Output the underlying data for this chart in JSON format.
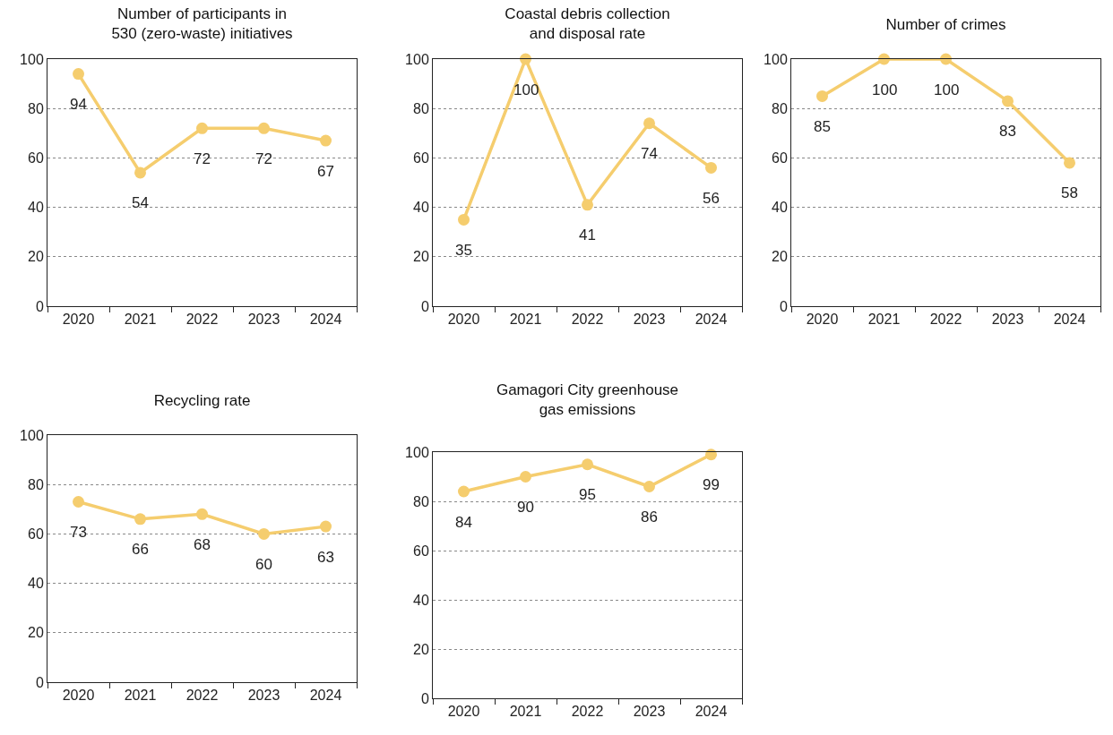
{
  "chart_data": [
    {
      "type": "line",
      "title": "Number of participants in 530 (zero-waste) initiatives",
      "categories": [
        "2020",
        "2021",
        "2022",
        "2023",
        "2024"
      ],
      "series": [
        {
          "color": "#f5cd6e",
          "values": [
            94,
            54,
            72,
            72,
            67
          ]
        }
      ],
      "ylim": [
        0,
        100
      ],
      "yticks": [
        0,
        20,
        40,
        60,
        80,
        100
      ],
      "grid": "y",
      "marker": "circle",
      "line_style": "solid",
      "data_labels": true
    },
    {
      "type": "line",
      "title": "Coastal debris collection and disposal rate",
      "categories": [
        "2020",
        "2021",
        "2022",
        "2023",
        "2024"
      ],
      "series": [
        {
          "color": "#f5cd6e",
          "values": [
            35,
            100,
            41,
            74,
            56
          ]
        }
      ],
      "ylim": [
        0,
        100
      ],
      "yticks": [
        0,
        20,
        40,
        60,
        80,
        100
      ],
      "grid": "y",
      "marker": "circle",
      "line_style": "solid",
      "data_labels": true
    },
    {
      "type": "line",
      "title": "Number of crimes",
      "categories": [
        "2020",
        "2021",
        "2022",
        "2023",
        "2024"
      ],
      "series": [
        {
          "color": "#f5cd6e",
          "values": [
            85,
            100,
            100,
            83,
            58
          ]
        }
      ],
      "ylim": [
        0,
        100
      ],
      "yticks": [
        0,
        20,
        40,
        60,
        80,
        100
      ],
      "grid": "y",
      "marker": "circle",
      "line_style": "solid",
      "data_labels": true
    },
    {
      "type": "line",
      "title": "Recycling rate",
      "categories": [
        "2020",
        "2021",
        "2022",
        "2023",
        "2024"
      ],
      "series": [
        {
          "color": "#f5cd6e",
          "values": [
            73,
            66,
            68,
            60,
            63
          ]
        }
      ],
      "ylim": [
        0,
        100
      ],
      "yticks": [
        0,
        20,
        40,
        60,
        80,
        100
      ],
      "grid": "y",
      "marker": "circle",
      "line_style": "solid",
      "data_labels": true
    },
    {
      "type": "line",
      "title": "Gamagori City greenhouse gas emissions",
      "categories": [
        "2020",
        "2021",
        "2022",
        "2023",
        "2024"
      ],
      "series": [
        {
          "color": "#f5cd6e",
          "values": [
            84,
            90,
            95,
            86,
            99
          ]
        }
      ],
      "ylim": [
        0,
        100
      ],
      "yticks": [
        0,
        20,
        40,
        60,
        80,
        100
      ],
      "grid": "y",
      "marker": "circle",
      "line_style": "solid",
      "data_labels": true
    }
  ]
}
